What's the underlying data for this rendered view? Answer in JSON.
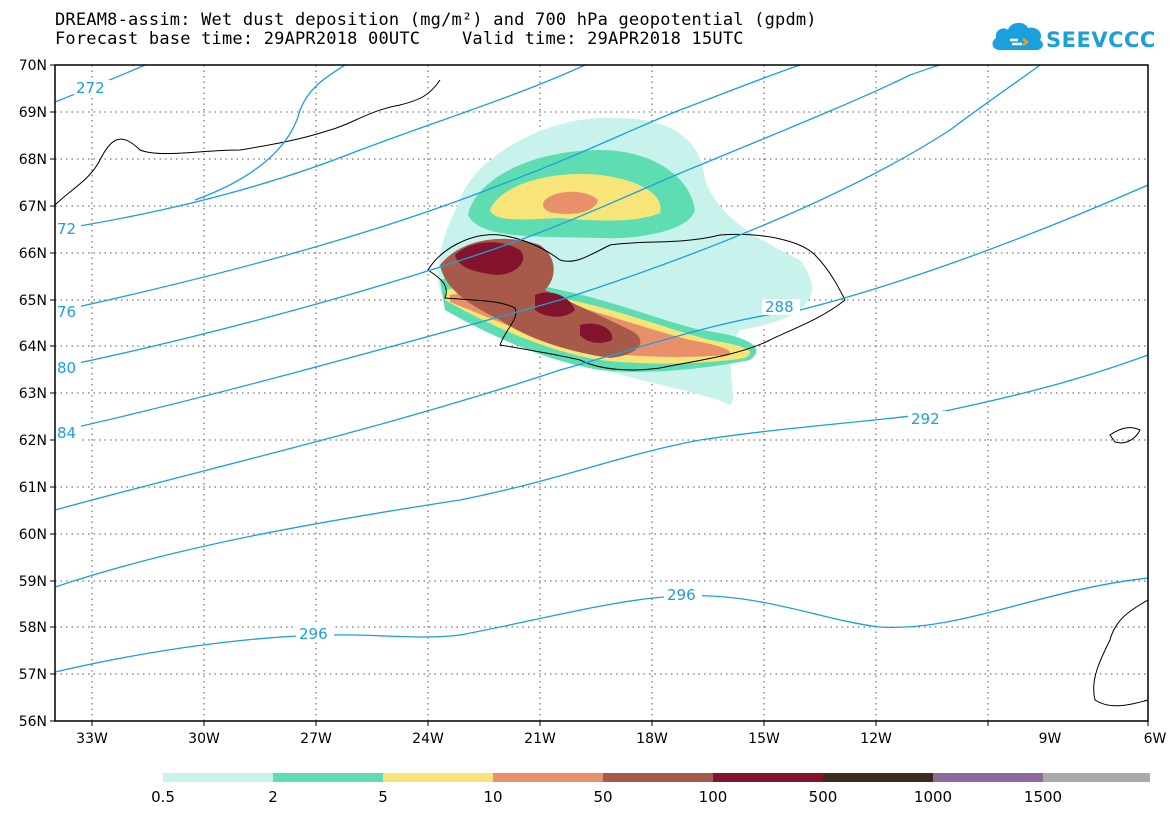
{
  "title": {
    "line1": "DREAM8-assim: Wet dust deposition (mg/m²) and 700 hPa geopotential (gpdm)",
    "line2": "Forecast base time: 29APR2018 00UTC    Valid time: 29APR2018 15UTC"
  },
  "logo": {
    "text": "SEEVCCC",
    "icon": "cloud-icon"
  },
  "map": {
    "lat_labels": [
      "70N",
      "69N",
      "68N",
      "67N",
      "66N",
      "65N",
      "64N",
      "63N",
      "62N",
      "61N",
      "60N",
      "59N",
      "58N",
      "57N",
      "56N"
    ],
    "lon_labels": [
      "33W",
      "30W",
      "27W",
      "24W",
      "21W",
      "18W",
      "15W",
      "12W",
      "9W",
      "6W"
    ],
    "contour_color": "#1aa0dc",
    "contour_labels": [
      "272",
      "72",
      "76",
      "80",
      "84",
      "288",
      "292",
      "296",
      "296"
    ]
  },
  "legend": {
    "labels": [
      "0.5",
      "2",
      "5",
      "10",
      "50",
      "100",
      "500",
      "1000",
      "1500"
    ],
    "colors": [
      "#c8f2ec",
      "#5fddb2",
      "#f7e57a",
      "#e8906a",
      "#a85a4a",
      "#84142e",
      "#3e2a1e",
      "#916a9a",
      "#aaaaaa"
    ]
  }
}
